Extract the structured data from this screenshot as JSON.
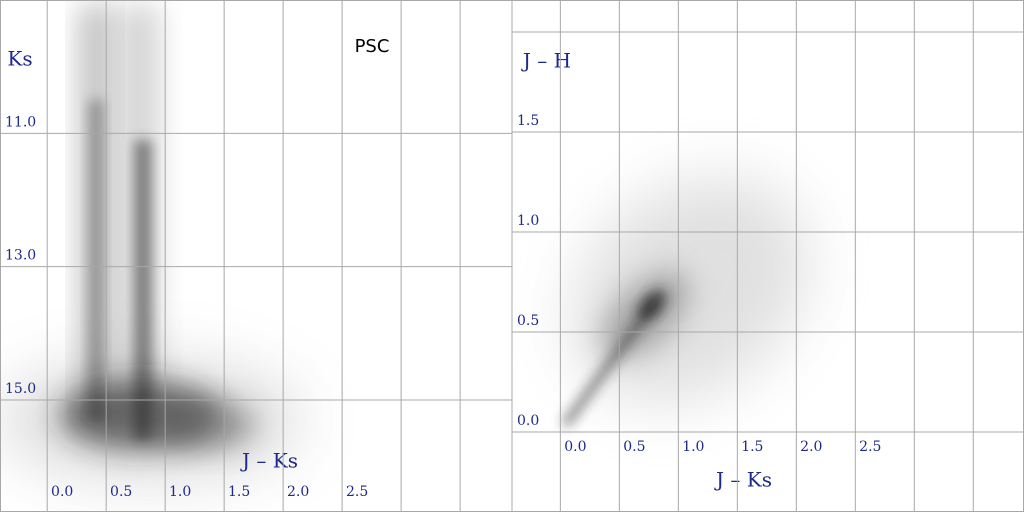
{
  "chart_data": [
    {
      "type": "density",
      "title": "PSC",
      "xlabel": "J – Ks",
      "ylabel": "Ks",
      "xlim": [
        -0.4,
        3.94
      ],
      "ylim": [
        16.68,
        9.0
      ],
      "xticks": [
        {
          "value": 0,
          "label": "0.0"
        },
        {
          "value": 0.5,
          "label": "0.5"
        },
        {
          "value": 1,
          "label": "1.0"
        },
        {
          "value": 1.5,
          "label": "1.5"
        },
        {
          "value": 2,
          "label": "2.0"
        },
        {
          "value": 2.5,
          "label": "2.5"
        },
        {
          "value": 3,
          "label": null
        },
        {
          "value": 3.5,
          "label": null
        }
      ],
      "yticks": [
        {
          "value": 11,
          "label": "11.0"
        },
        {
          "value": 13,
          "label": "13.0"
        },
        {
          "value": 15,
          "label": "15.0"
        }
      ],
      "grid": true
    },
    {
      "type": "density",
      "xlabel": "J – Ks",
      "ylabel": "J – H",
      "xlim": [
        -0.41,
        3.93
      ],
      "ylim": [
        -0.4,
        2.16
      ],
      "xticks": [
        {
          "value": 0,
          "label": "0.0"
        },
        {
          "value": 0.5,
          "label": "0.5"
        },
        {
          "value": 1,
          "label": "1.0"
        },
        {
          "value": 1.5,
          "label": "1.5"
        },
        {
          "value": 2,
          "label": "2.0"
        },
        {
          "value": 2.5,
          "label": "2.5"
        },
        {
          "value": 3,
          "label": null
        },
        {
          "value": 3.5,
          "label": null
        }
      ],
      "yticks": [
        {
          "value": 0,
          "label": "0.0"
        },
        {
          "value": 0.5,
          "label": "0.5"
        },
        {
          "value": 1,
          "label": "1.0"
        },
        {
          "value": 1.5,
          "label": "1.5"
        },
        {
          "value": 2,
          "label": null
        }
      ],
      "grid": true
    }
  ]
}
